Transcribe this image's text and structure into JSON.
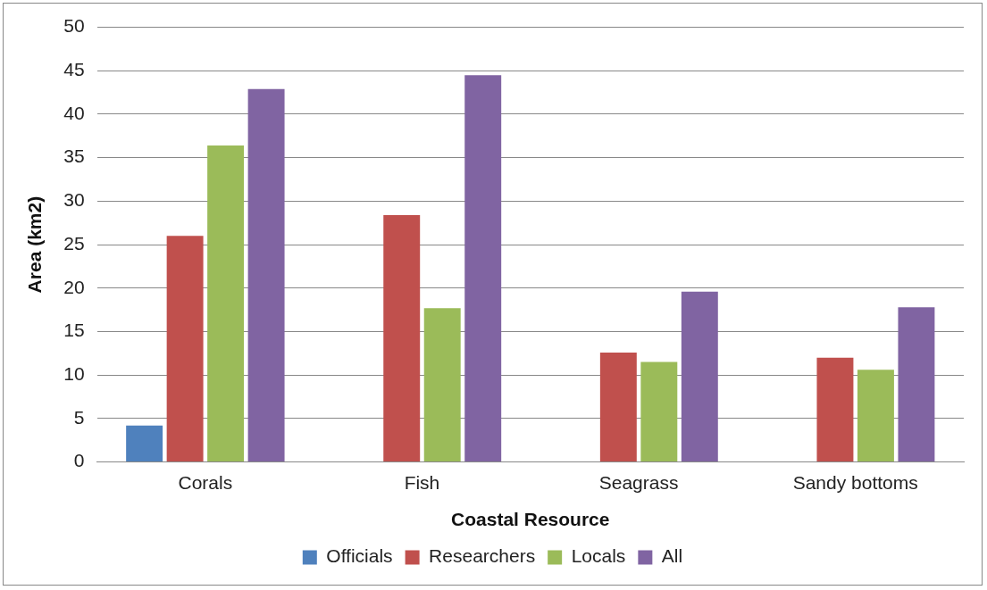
{
  "chart_data": {
    "type": "bar",
    "xlabel": "Coastal Resource",
    "ylabel": "Area (km2)",
    "categories": [
      "Corals",
      "Fish",
      "Seagrass",
      "Sandy bottoms"
    ],
    "series": [
      {
        "name": "Officials",
        "color": "#4f81bd",
        "values": [
          4.2,
          null,
          null,
          null
        ]
      },
      {
        "name": "Researchers",
        "color": "#c0504d",
        "values": [
          26,
          28.4,
          12.6,
          12
        ]
      },
      {
        "name": "Locals",
        "color": "#9bbb59",
        "values": [
          36.4,
          17.7,
          11.5,
          10.6
        ]
      },
      {
        "name": "All",
        "color": "#8064a2",
        "values": [
          42.9,
          44.5,
          19.6,
          17.8
        ]
      }
    ],
    "ylim": [
      0,
      50
    ],
    "yticks": [
      0,
      5,
      10,
      15,
      20,
      25,
      30,
      35,
      40,
      45,
      50
    ],
    "grid": "y",
    "legend": "bottom"
  }
}
